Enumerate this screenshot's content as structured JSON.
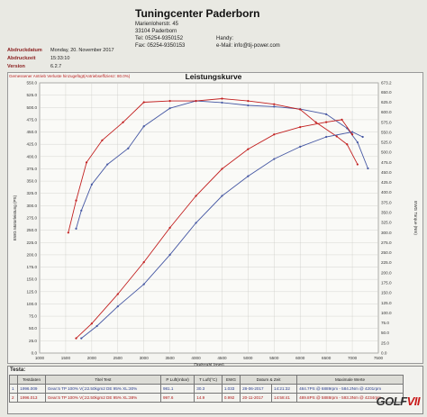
{
  "header": {
    "company": "Tuningcenter Paderborn",
    "street": "Marienloherstr. 45",
    "city": "33104 Paderborn",
    "tel": "Tel:   05254-9350152",
    "fax": "Fax:   05254-9350153",
    "handy": "Handy:",
    "email": "e-Mail:   info@tij-power.com"
  },
  "meta": {
    "date_label": "Abdruckdatum",
    "date_value": "Monday, 20. November 2017",
    "time_label": "Abdruckzeit",
    "time_value": "15:33:10",
    "version_label": "Version",
    "version_value": "6.2.7"
  },
  "legend_text": "Gemessener Antrieb Verluste hinzugefügt(Antriebseffizienz: 80.0%)",
  "colors": {
    "blue": "#4557a3",
    "red": "#c21f1f",
    "grid": "#cdcdc8"
  },
  "chart_data": {
    "type": "line",
    "title": "Leistungskurve",
    "xlabel": "Drehzahl (rpm)",
    "ylabel_left": "EWG Motorleistung (PS)",
    "ylabel_right": "EWG Torque (Nm)",
    "xlim": [
      1000,
      7500
    ],
    "x_ticks": [
      1000,
      1500,
      2000,
      2500,
      3000,
      3500,
      4000,
      4500,
      5000,
      5500,
      6000,
      6500,
      7000,
      7500
    ],
    "ylim_left": [
      0,
      550
    ],
    "y_ticks_left": [
      0,
      25,
      50,
      75,
      100,
      125,
      150,
      175,
      200,
      225,
      250,
      275,
      300,
      325,
      350,
      375,
      400,
      425,
      450,
      475,
      500,
      525,
      550
    ],
    "ylim_right": [
      0,
      673.2
    ],
    "y_ticks_right": [
      673.2,
      650,
      625,
      600,
      575,
      550,
      525,
      500,
      475,
      450,
      425,
      400,
      375,
      350,
      325,
      300,
      275,
      250,
      225,
      200,
      175,
      150,
      125,
      100,
      75,
      50,
      25,
      0
    ],
    "series": [
      {
        "name": "1996.009",
        "axis": "right",
        "color": "blue",
        "x": [
          1700,
          1800,
          2000,
          2300,
          2700,
          3000,
          3500,
          4000,
          4500,
          5000,
          5500,
          6000,
          6500,
          6900,
          7100,
          7300
        ],
        "y": [
          310,
          355,
          420,
          470,
          510,
          565,
          610,
          628,
          624,
          617,
          614,
          608,
          595,
          560,
          525,
          460
        ]
      },
      {
        "name": "1996.013",
        "axis": "right",
        "color": "red",
        "x": [
          1550,
          1700,
          1900,
          2200,
          2600,
          3000,
          3500,
          4000,
          4500,
          5000,
          5500,
          6000,
          6300,
          6700,
          6900,
          7100
        ],
        "y": [
          300,
          380,
          475,
          530,
          575,
          625,
          628,
          628,
          634,
          628,
          620,
          607,
          575,
          540,
          520,
          470
        ]
      },
      {
        "name": "1996.009",
        "axis": "left",
        "color": "blue",
        "x": [
          1800,
          2100,
          2500,
          3000,
          3500,
          4000,
          4500,
          5000,
          5500,
          6000,
          6500,
          7000,
          7200
        ],
        "y": [
          30,
          55,
          95,
          140,
          200,
          265,
          320,
          360,
          395,
          420,
          440,
          450,
          440
        ]
      },
      {
        "name": "1996.013",
        "axis": "left",
        "color": "red",
        "x": [
          1700,
          2000,
          2500,
          3000,
          3500,
          4000,
          4500,
          5000,
          5500,
          6000,
          6500,
          6800,
          7000
        ],
        "y": [
          30,
          60,
          120,
          185,
          255,
          320,
          375,
          415,
          445,
          460,
          470,
          475,
          445
        ]
      }
    ]
  },
  "table": {
    "section_label": "Testa:",
    "headers": [
      "",
      "Testdaten",
      "Titel Test",
      "P Luft(mbar)",
      "T Luft(°C)",
      "EWG",
      "Datum & Zeit",
      "Maximale Werte"
    ],
    "rows": [
      [
        "1",
        "1996.009",
        "Gear:5 TP 100% V(:22.50kgm2 DE 95% XL:30%",
        "981.1",
        "30.3",
        "1.033",
        "28-06-2017",
        "14:21:32",
        "484.7PS @ 6889rpm - 584.2Nm @ 4201rpm"
      ],
      [
        "2",
        "1996.013",
        "Gear:5 TP 100% V(:22.50kgm2 DE 95% XL:38%",
        "997.6",
        "14.9",
        "0.992",
        "20-11-2017",
        "14:58:41",
        "489.8PS @ 5888rpm - 593.3Nm @ 4234rpm"
      ]
    ]
  },
  "brand": {
    "left": "GOLF",
    "right": "VII"
  }
}
